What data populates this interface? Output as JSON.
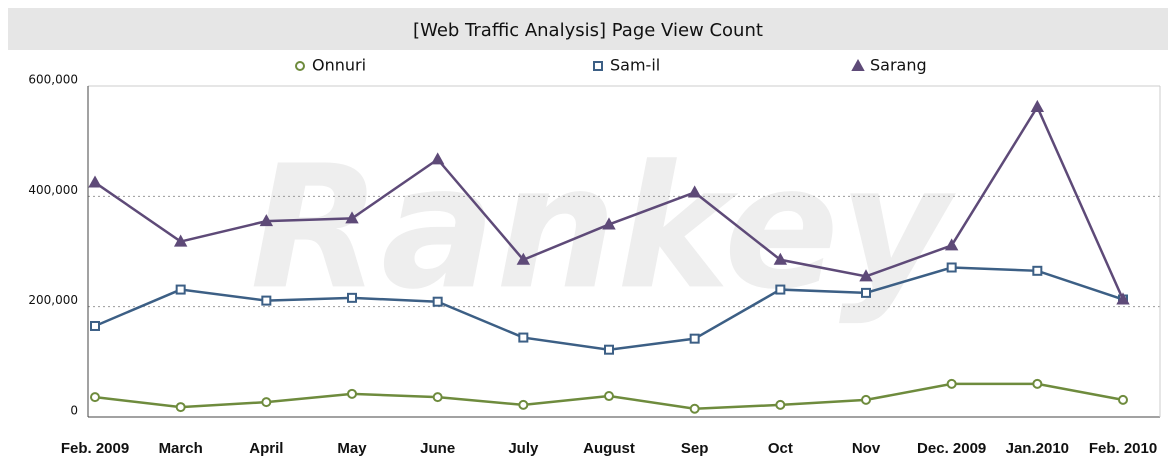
{
  "chart_data": {
    "type": "line",
    "title": "[Web Traffic Analysis] Page View Count",
    "watermark": "Rankey",
    "categories": [
      "Feb. 2009",
      "March",
      "April",
      "May",
      "June",
      "July",
      "August",
      "Sep",
      "Oct",
      "Nov",
      "Dec. 2009",
      "Jan.2010",
      "Feb. 2010"
    ],
    "series": [
      {
        "name": "Onnuri",
        "color": "#6e8b3d",
        "marker": "circle",
        "values": [
          36000,
          18000,
          27000,
          42000,
          36000,
          22000,
          38000,
          15000,
          22000,
          31000,
          60000,
          60000,
          31000
        ]
      },
      {
        "name": "Sam-il",
        "color": "#3c5f85",
        "marker": "square",
        "values": [
          165000,
          231000,
          211000,
          216000,
          209000,
          144000,
          122000,
          142000,
          231000,
          225000,
          271000,
          265000,
          213000
        ]
      },
      {
        "name": "Sarang",
        "color": "#5e4a78",
        "marker": "triangle",
        "values": [
          425000,
          318000,
          355000,
          360000,
          467000,
          285000,
          349000,
          407000,
          285000,
          255000,
          311000,
          562000,
          213000
        ]
      }
    ],
    "ylim": [
      0,
      600000
    ],
    "yticks": [
      {
        "value": 0,
        "label": "0"
      },
      {
        "value": 200000,
        "label": "200,000"
      },
      {
        "value": 400000,
        "label": "400,000"
      },
      {
        "value": 600000,
        "label": "600,000"
      }
    ],
    "grid": true,
    "legend": "top"
  }
}
